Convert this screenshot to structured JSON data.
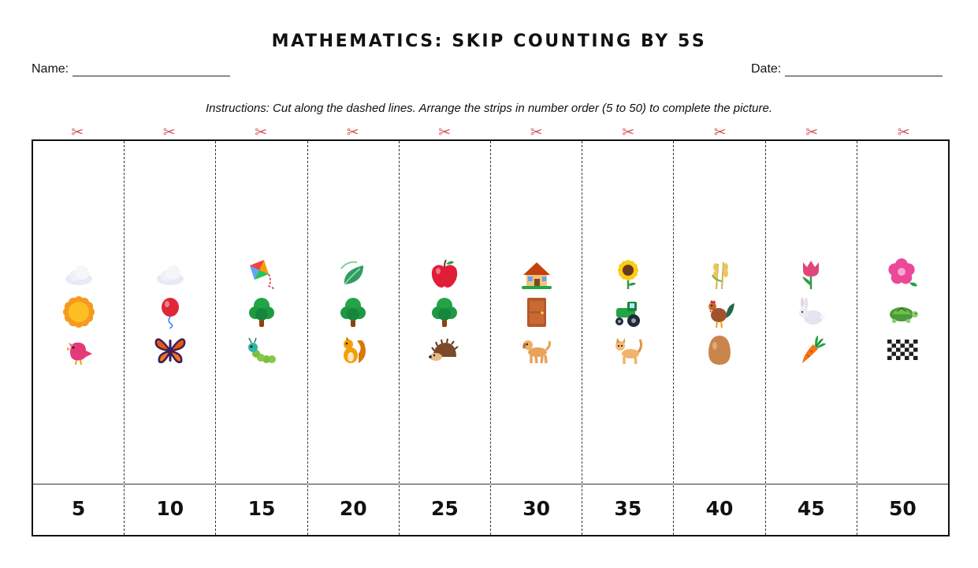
{
  "title": "MATHEMATICS: SKIP COUNTING BY 5S",
  "name_label": "Name:",
  "date_label": "Date:",
  "instructions": "Instructions: Cut along the dashed lines. Arrange the strips in number order (5 to 50) to complete the picture.",
  "scissors_icon": "✂",
  "colors": {
    "scissors": "#d9535a",
    "border": "#111111",
    "text": "#111111"
  },
  "strips": [
    {
      "number": "5",
      "icons": [
        "cloud-icon",
        "sun-icon",
        "bird-icon"
      ]
    },
    {
      "number": "10",
      "icons": [
        "cloud-icon",
        "balloon-icon",
        "butterfly-icon"
      ]
    },
    {
      "number": "15",
      "icons": [
        "kite-icon",
        "tree-icon",
        "caterpillar-icon"
      ]
    },
    {
      "number": "20",
      "icons": [
        "leaf-icon",
        "tree-icon",
        "squirrel-icon"
      ]
    },
    {
      "number": "25",
      "icons": [
        "apple-icon",
        "tree-icon",
        "hedgehog-icon"
      ]
    },
    {
      "number": "30",
      "icons": [
        "house-icon",
        "door-icon",
        "dog-icon"
      ]
    },
    {
      "number": "35",
      "icons": [
        "sunflower-icon",
        "tractor-icon",
        "cat-icon"
      ]
    },
    {
      "number": "40",
      "icons": [
        "wheat-icon",
        "rooster-icon",
        "egg-icon"
      ]
    },
    {
      "number": "45",
      "icons": [
        "tulip-icon",
        "rabbit-icon",
        "carrot-icon"
      ]
    },
    {
      "number": "50",
      "icons": [
        "hibiscus-icon",
        "turtle-icon",
        "checkered-flag-icon"
      ]
    }
  ]
}
